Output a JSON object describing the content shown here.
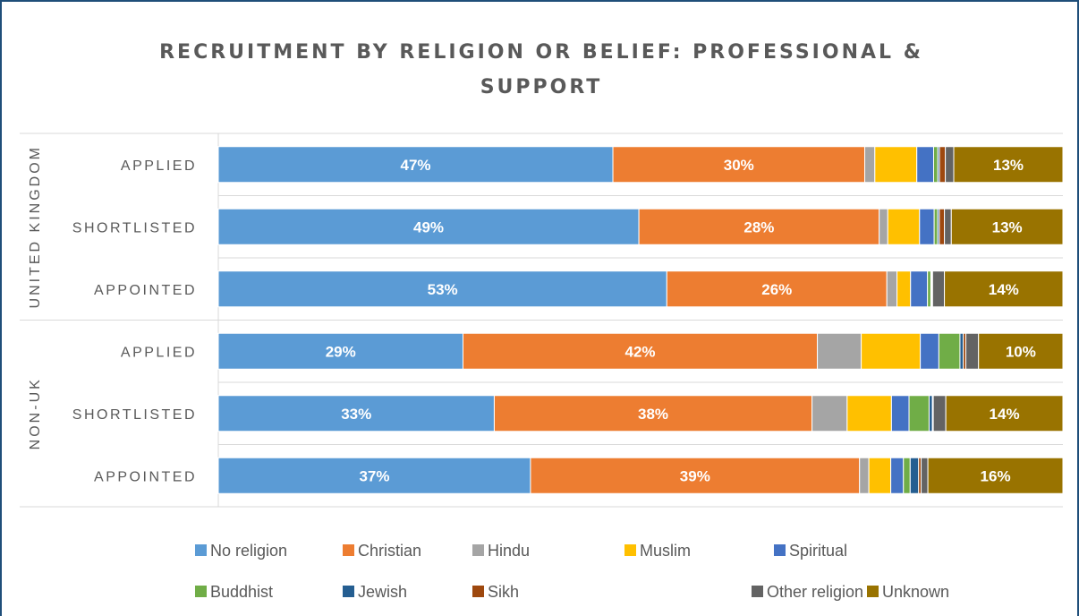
{
  "chart_data": {
    "type": "bar",
    "stacked": "100%",
    "orientation": "horizontal",
    "title": "RECRUITMENT BY RELIGION OR BELIEF: PROFESSIONAL & SUPPORT",
    "title_lines": [
      "RECRUITMENT BY RELIGION OR BELIEF: PROFESSIONAL &",
      "SUPPORT"
    ],
    "xlim": [
      0,
      100
    ],
    "legend_position": "bottom",
    "groups": [
      {
        "label": "UNITED KINGDOM",
        "categories": [
          "APPLIED",
          "SHORTLISTED",
          "APPOINTED"
        ]
      },
      {
        "label": "NON-UK",
        "categories": [
          "APPLIED",
          "SHORTLISTED",
          "APPOINTED"
        ]
      }
    ],
    "series": [
      {
        "name": "No religion",
        "color": "#5b9bd5",
        "values": [
          47,
          49,
          53,
          29,
          33,
          37
        ]
      },
      {
        "name": "Christian",
        "color": "#ed7d31",
        "values": [
          30,
          28,
          26,
          42,
          38,
          39
        ]
      },
      {
        "name": "Hindu",
        "color": "#a5a5a5",
        "values": [
          1.2,
          1.0,
          1.2,
          5.2,
          4.2,
          1.1
        ]
      },
      {
        "name": "Muslim",
        "color": "#ffc000",
        "values": [
          5.0,
          3.7,
          1.6,
          7.0,
          5.3,
          2.6
        ]
      },
      {
        "name": "Spiritual",
        "color": "#4472c4",
        "values": [
          2.0,
          1.7,
          2.0,
          2.2,
          2.1,
          1.5
        ]
      },
      {
        "name": "Buddhist",
        "color": "#70ad47",
        "values": [
          0.5,
          0.4,
          0.4,
          2.5,
          2.4,
          0.8
        ]
      },
      {
        "name": "Jewish",
        "color": "#255e91",
        "values": [
          0.2,
          0.2,
          0.1,
          0.4,
          0.4,
          1.0
        ]
      },
      {
        "name": "Sikh",
        "color": "#9e480e",
        "values": [
          0.7,
          0.6,
          0.1,
          0.3,
          0.1,
          0.3
        ]
      },
      {
        "name": "Other religion",
        "color": "#636363",
        "values": [
          1.0,
          0.8,
          1.4,
          1.5,
          1.5,
          0.8
        ]
      },
      {
        "name": "Unknown",
        "color": "#997300",
        "values": [
          13,
          13,
          14,
          10,
          14,
          16
        ]
      }
    ],
    "data_labels": {
      "No religion": [
        "47%",
        "49%",
        "53%",
        "29%",
        "33%",
        "37%"
      ],
      "Christian": [
        "30%",
        "28%",
        "26%",
        "42%",
        "38%",
        "39%"
      ],
      "Unknown": [
        "13%",
        "13%",
        "14%",
        "10%",
        "14%",
        "16%"
      ]
    }
  }
}
